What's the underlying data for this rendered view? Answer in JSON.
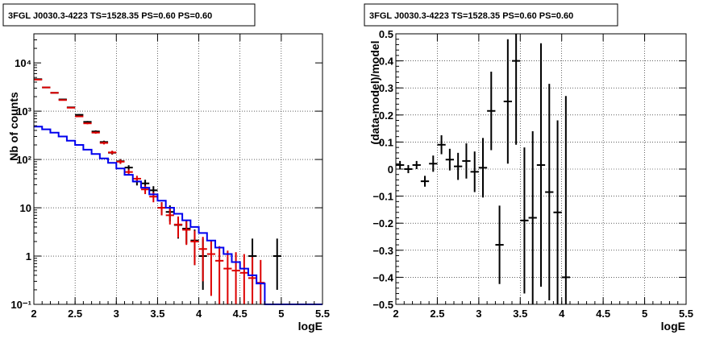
{
  "colors": {
    "data": "#000000",
    "model_points": "#dd0000",
    "model_line": "#0000ee",
    "grid": "#000000"
  },
  "chart_data": [
    {
      "type": "line",
      "title": "3FGL J0030.3-4223 TS=1528.35 PS=0.60 PS=0.60",
      "xlabel": "logE",
      "ylabel": "Nb of counts",
      "xlim": [
        2,
        5.5
      ],
      "ylim": [
        0.1,
        40000
      ],
      "yscale": "log",
      "grid": true,
      "xticks": [
        2,
        2.5,
        3,
        3.5,
        4,
        4.5,
        5,
        5.5
      ],
      "xtick_labels": [
        "2",
        "2.5",
        "3",
        "3.5",
        "4",
        "4.5",
        "5",
        "5.5"
      ],
      "yticks": [
        0.1,
        1,
        10,
        100,
        1000,
        10000
      ],
      "ytick_labels": [
        "10⁻¹",
        "1",
        "10",
        "10²",
        "10³",
        "10⁴"
      ],
      "series": [
        {
          "style": "points",
          "color": "#000000",
          "x": [
            2.05,
            2.15,
            2.25,
            2.35,
            2.45,
            2.55,
            2.65,
            2.75,
            2.85,
            2.95,
            3.05,
            3.15,
            3.25,
            3.35,
            3.45,
            3.55,
            3.65,
            3.75,
            3.85,
            3.95,
            4.05,
            4.65,
            4.95
          ],
          "y": [
            4600,
            3100,
            2400,
            1750,
            1200,
            840,
            600,
            380,
            230,
            138,
            92,
            68,
            35,
            32,
            23,
            10,
            8.2,
            4.4,
            3.7,
            2.1,
            1.0,
            1.0,
            1.0
          ],
          "yerr_low": [
            70,
            55,
            50,
            40,
            35,
            30,
            25,
            20,
            15,
            12,
            10,
            8,
            6,
            6,
            5,
            3,
            3,
            2.1,
            1.9,
            1.45,
            0.8,
            0.8,
            0.8
          ],
          "yerr_high": [
            70,
            55,
            50,
            40,
            35,
            30,
            25,
            20,
            15,
            12,
            10,
            8,
            6,
            6,
            5,
            3,
            3,
            2.1,
            1.9,
            1.45,
            1.3,
            1.3,
            1.3
          ]
        },
        {
          "style": "points",
          "color": "#dd0000",
          "x": [
            2.05,
            2.15,
            2.25,
            2.35,
            2.45,
            2.55,
            2.65,
            2.75,
            2.85,
            2.95,
            3.05,
            3.15,
            3.25,
            3.35,
            3.45,
            3.55,
            3.65,
            3.75,
            3.85,
            3.95,
            4.05,
            4.15,
            4.25,
            4.35,
            4.45,
            4.55,
            4.65,
            4.75
          ],
          "y": [
            4500,
            3100,
            2400,
            1700,
            1180,
            780,
            560,
            360,
            220,
            140,
            90,
            55,
            40,
            24,
            17,
            10,
            7,
            4.5,
            3.5,
            2.0,
            1.4,
            1.1,
            0.8,
            0.55,
            0.5,
            0.45,
            0.35,
            0.28
          ],
          "yerr_low": [
            60,
            50,
            45,
            40,
            35,
            28,
            24,
            19,
            15,
            12,
            9,
            7,
            6,
            4.8,
            4,
            3,
            2.5,
            2.1,
            1.8,
            1.35,
            1.1,
            0.95,
            0.7,
            0.5,
            0.45,
            0.4,
            0.25,
            0.18
          ],
          "yerr_high": [
            60,
            50,
            45,
            40,
            35,
            28,
            24,
            19,
            15,
            12,
            9,
            7,
            6,
            4.8,
            4,
            3,
            2.5,
            2.1,
            1.8,
            1.35,
            1.1,
            0.95,
            0.8,
            0.75,
            0.7,
            0.65,
            0.6,
            0.55
          ]
        },
        {
          "style": "step",
          "color": "#0000ee",
          "edges": [
            2.0,
            2.1,
            2.2,
            2.3,
            2.4,
            2.5,
            2.6,
            2.7,
            2.8,
            2.9,
            3.0,
            3.1,
            3.2,
            3.3,
            3.4,
            3.5,
            3.6,
            3.7,
            3.8,
            3.9,
            4.0,
            4.1,
            4.2,
            4.3,
            4.4,
            4.5,
            4.6,
            4.7,
            4.8,
            5.5
          ],
          "y": [
            480,
            420,
            360,
            300,
            245,
            200,
            160,
            130,
            105,
            85,
            65,
            48,
            35,
            26,
            19,
            14,
            10,
            7.5,
            5.5,
            4.0,
            3.0,
            2.1,
            1.5,
            1.1,
            0.75,
            0.55,
            0.4,
            0.27,
            0.1
          ]
        }
      ]
    },
    {
      "type": "scatter",
      "title": "3FGL J0030.3-4223 TS=1528.35 PS=0.60 PS=0.60",
      "xlabel": "logE",
      "ylabel": "(data-model)/model",
      "xlim": [
        2,
        5.5
      ],
      "ylim": [
        -0.5,
        0.5
      ],
      "grid": true,
      "xticks": [
        2,
        2.5,
        3,
        3.5,
        4,
        4.5,
        5,
        5.5
      ],
      "xtick_labels": [
        "2",
        "2.5",
        "3",
        "3.5",
        "4",
        "4.5",
        "5",
        "5.5"
      ],
      "yticks": [
        -0.5,
        -0.4,
        -0.3,
        -0.2,
        -0.1,
        0,
        0.1,
        0.2,
        0.3,
        0.4,
        0.5
      ],
      "ytick_labels": [
        "−0.5",
        "−0.4",
        "−0.3",
        "−0.2",
        "−0.1",
        "0",
        "0.1",
        "0.2",
        "0.3",
        "0.4",
        "0.5"
      ],
      "series": [
        {
          "style": "points",
          "color": "#000000",
          "x": [
            2.05,
            2.15,
            2.25,
            2.35,
            2.45,
            2.55,
            2.65,
            2.75,
            2.85,
            2.95,
            3.05,
            3.15,
            3.25,
            3.35,
            3.45,
            3.55,
            3.65,
            3.75,
            3.85,
            3.95,
            4.05
          ],
          "y": [
            0.015,
            0.0,
            0.015,
            -0.045,
            0.02,
            0.09,
            0.035,
            0.01,
            0.03,
            -0.01,
            0.005,
            0.215,
            -0.28,
            0.25,
            0.4,
            -0.19,
            -0.18,
            0.015,
            -0.085,
            -0.16,
            -0.4
          ],
          "yerr_low": [
            0.015,
            0.015,
            0.015,
            0.02,
            0.03,
            0.035,
            0.04,
            0.05,
            0.065,
            0.075,
            0.11,
            0.145,
            0.145,
            0.23,
            0.31,
            0.27,
            0.32,
            0.45,
            0.4,
            0.34,
            0.1
          ],
          "yerr_high": [
            0.015,
            0.015,
            0.015,
            0.02,
            0.03,
            0.035,
            0.04,
            0.05,
            0.065,
            0.075,
            0.11,
            0.145,
            0.145,
            0.23,
            0.31,
            0.27,
            0.32,
            0.45,
            0.4,
            0.34,
            0.67
          ]
        }
      ]
    }
  ]
}
